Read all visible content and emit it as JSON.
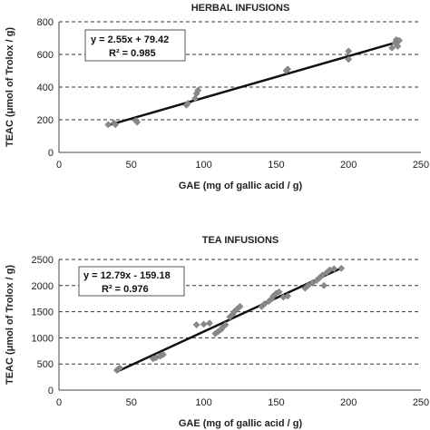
{
  "chart_data": [
    {
      "type": "scatter",
      "title": "HERBAL INFUSIONS",
      "xlabel": "GAE (mg of gallic acid / g)",
      "ylabel": "TEAC (μmol of Trolox / g)",
      "xlim": [
        0,
        250
      ],
      "ylim": [
        0,
        800
      ],
      "xticks": [
        "0",
        "50",
        "100",
        "150",
        "200",
        "250"
      ],
      "yticks": [
        "0",
        "200",
        "400",
        "600",
        "800"
      ],
      "grid": "horizontal-dashed",
      "annotation": {
        "equation": "y = 2.55x + 79.42",
        "r2": "R² = 0.985"
      },
      "trendline": {
        "slope": 2.55,
        "intercept": 79.42,
        "x_range": [
          33,
          235
        ]
      },
      "points": [
        [
          34,
          170
        ],
        [
          38,
          180
        ],
        [
          39,
          170
        ],
        [
          53,
          195
        ],
        [
          54,
          185
        ],
        [
          88,
          290
        ],
        [
          89,
          300
        ],
        [
          94,
          330
        ],
        [
          95,
          360
        ],
        [
          96,
          380
        ],
        [
          157,
          500
        ],
        [
          158,
          510
        ],
        [
          200,
          570
        ],
        [
          200,
          620
        ],
        [
          230,
          640
        ],
        [
          232,
          670
        ],
        [
          233,
          690
        ],
        [
          234,
          650
        ],
        [
          235,
          685
        ]
      ]
    },
    {
      "type": "scatter",
      "title": "TEA INFUSIONS",
      "xlabel": "GAE (mg of gallic acid / g)",
      "ylabel": "TEAC (μmol of Trolox / g)",
      "xlim": [
        0,
        250
      ],
      "ylim": [
        0,
        2500
      ],
      "xticks": [
        "0",
        "50",
        "100",
        "150",
        "200",
        "250"
      ],
      "yticks": [
        "0",
        "500",
        "1000",
        "1500",
        "2000",
        "2500"
      ],
      "grid": "horizontal-dashed",
      "annotation": {
        "equation": "y = 12.79x - 159.18",
        "r2": "R² = 0.976"
      },
      "trendline": {
        "slope": 12.79,
        "intercept": -159.18,
        "x_range": [
          40,
          195
        ]
      },
      "points": [
        [
          40,
          380
        ],
        [
          41,
          400
        ],
        [
          42,
          420
        ],
        [
          65,
          600
        ],
        [
          67,
          620
        ],
        [
          70,
          650
        ],
        [
          72,
          680
        ],
        [
          95,
          1250
        ],
        [
          100,
          1260
        ],
        [
          104,
          1280
        ],
        [
          108,
          1080
        ],
        [
          110,
          1120
        ],
        [
          112,
          1160
        ],
        [
          113,
          1200
        ],
        [
          115,
          1250
        ],
        [
          118,
          1400
        ],
        [
          120,
          1450
        ],
        [
          121,
          1500
        ],
        [
          123,
          1550
        ],
        [
          125,
          1600
        ],
        [
          140,
          1600
        ],
        [
          142,
          1650
        ],
        [
          145,
          1700
        ],
        [
          147,
          1750
        ],
        [
          148,
          1800
        ],
        [
          150,
          1850
        ],
        [
          152,
          1880
        ],
        [
          155,
          1780
        ],
        [
          158,
          1800
        ],
        [
          170,
          1950
        ],
        [
          172,
          2000
        ],
        [
          175,
          2050
        ],
        [
          178,
          2100
        ],
        [
          180,
          2150
        ],
        [
          182,
          2200
        ],
        [
          183,
          2000
        ],
        [
          185,
          2250
        ],
        [
          187,
          2300
        ],
        [
          190,
          2320
        ],
        [
          195,
          2330
        ]
      ]
    }
  ]
}
